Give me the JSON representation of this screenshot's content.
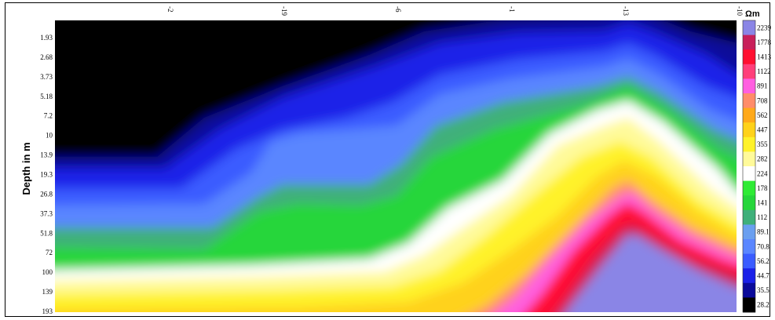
{
  "chart_data": {
    "type": "heatmap",
    "title": "",
    "ylabel": "Depth in m",
    "colorbar_unit": "Ωm",
    "top_ticks": [
      "-2",
      "-19",
      "-6",
      "-1",
      "-13",
      "-10"
    ],
    "depth_ticks": [
      "1.93",
      "2.68",
      "3.73",
      "5.18",
      "7.2",
      "10",
      "13.9",
      "19.3",
      "26.8",
      "37.3",
      "51.8",
      "72",
      "100",
      "139",
      "193"
    ],
    "colorbar": [
      {
        "value": "2239",
        "color": "#8a85e6"
      },
      {
        "value": "1778",
        "color": "#c8205a"
      },
      {
        "value": "1413",
        "color": "#ff1030"
      },
      {
        "value": "1122",
        "color": "#ff3f7a"
      },
      {
        "value": "891",
        "color": "#ff5ee0"
      },
      {
        "value": "708",
        "color": "#ff8c6a"
      },
      {
        "value": "562",
        "color": "#ffa91a"
      },
      {
        "value": "447",
        "color": "#ffd21a"
      },
      {
        "value": "355",
        "color": "#fff22a"
      },
      {
        "value": "282",
        "color": "#fffa9a"
      },
      {
        "value": "224",
        "color": "#ffffff"
      },
      {
        "value": "178",
        "color": "#2eeb35"
      },
      {
        "value": "141",
        "color": "#25d63b"
      },
      {
        "value": "112",
        "color": "#3fb07a"
      },
      {
        "value": "89.1",
        "color": "#6a9ff0"
      },
      {
        "value": "70.8",
        "color": "#5a86ff"
      },
      {
        "value": "56.2",
        "color": "#3a5cff"
      },
      {
        "value": "44.7",
        "color": "#1a20e8"
      },
      {
        "value": "35.5",
        "color": "#0a0a9a"
      },
      {
        "value": "28.2",
        "color": "#000000"
      }
    ]
  }
}
